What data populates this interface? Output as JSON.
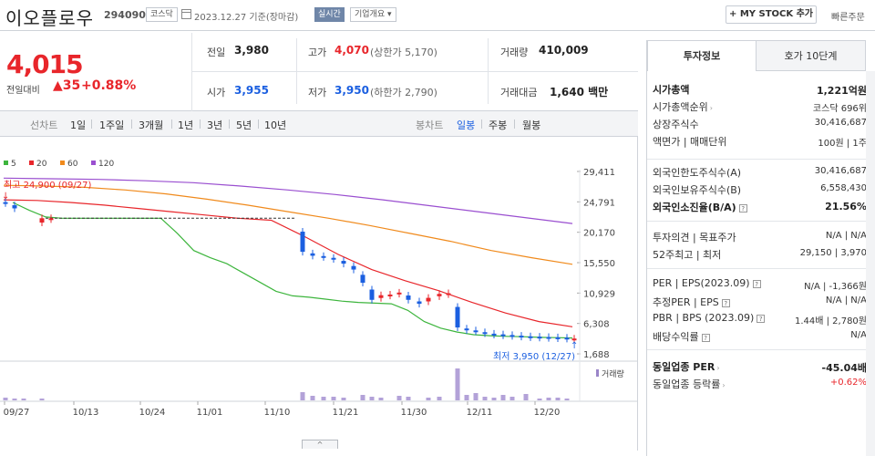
{
  "header": {
    "company_name": "이오플로우",
    "code": "294090",
    "market_tag": "코스닥",
    "date_text": "2023.12.27  기준(장마감)",
    "realtime_label": "실시간",
    "overview_label": "기업개요",
    "mystock_label": "MY STOCK 추가",
    "quick_order": "빠른주문"
  },
  "summary": {
    "price": "4,015",
    "change_label": "전일대비",
    "change_value": "35",
    "change_pct": "+0.88%",
    "prev_close_label": "전일",
    "prev_close": "3,980",
    "high_label": "고가",
    "high": "4,070",
    "upper_limit": "(상한가 5,170)",
    "volume_label": "거래량",
    "volume": "410,009",
    "open_label": "시가",
    "open": "3,955",
    "low_label": "저가",
    "low": "3,950",
    "lower_limit": "(하한가 2,790)",
    "amount_label": "거래대금",
    "amount": "1,640 백만"
  },
  "toolbar": {
    "line_chart": "선차트",
    "periods": [
      "1일",
      "1주일",
      "3개월",
      "1년",
      "3년",
      "5년",
      "10년"
    ],
    "candle_chart": "봉차트",
    "candle_types": [
      "일봉",
      "주봉",
      "월봉"
    ]
  },
  "chart": {
    "ma_legend": [
      {
        "label": "5",
        "color": "#3db53d"
      },
      {
        "label": "20",
        "color": "#e8262b"
      },
      {
        "label": "60",
        "color": "#f08a1c"
      },
      {
        "label": "120",
        "color": "#9a4fd0"
      }
    ],
    "y_ticks": [
      "29,411",
      "24,791",
      "20,170",
      "15,550",
      "10,929",
      "6,308",
      "1,688"
    ],
    "x_ticks": [
      "09/27",
      "10/13",
      "10/24",
      "11/01",
      "11/10",
      "11/21",
      "11/30",
      "12/11",
      "12/20"
    ],
    "high_annotation": "최고 24,900 (09/27)",
    "low_annotation": "최저 3,950 (12/27)",
    "volume_label": "거래량",
    "scroll_handle": "^"
  },
  "chart_data": {
    "type": "candlestick",
    "title": "",
    "ylim": [
      1688,
      29411
    ],
    "series": [
      {
        "name": "5",
        "color": "#3db53d"
      },
      {
        "name": "20",
        "color": "#e8262b"
      },
      {
        "name": "60",
        "color": "#f08a1c"
      },
      {
        "name": "120",
        "color": "#9a4fd0"
      }
    ],
    "high": {
      "value": 24900,
      "date": "09/27"
    },
    "low": {
      "value": 3950,
      "date": "12/27"
    },
    "candles_close": [
      24600,
      23800,
      22000,
      21200,
      22300,
      22300,
      22300,
      22300,
      22300,
      22300,
      17200,
      16600,
      16400,
      16100,
      15400,
      14500,
      12500,
      9900,
      10600,
      10700,
      11000,
      9900,
      9300,
      10200,
      10800,
      10900,
      5700,
      5300,
      5100,
      4800,
      4600,
      4500,
      4400,
      4300,
      4200,
      4150,
      4100,
      4050,
      4000,
      4015
    ],
    "ma5": [
      24700,
      23500,
      22500,
      22300,
      22300,
      22300,
      22300,
      22300,
      22300,
      22300,
      20000,
      17400,
      16300,
      15400,
      14000,
      12600,
      11200,
      10500,
      10300,
      10000,
      9700,
      9500,
      9400,
      9300,
      8300,
      6600,
      5600,
      5000,
      4600,
      4450,
      4350,
      4300,
      4200,
      4150,
      4100
    ],
    "ma20": [
      25100,
      25000,
      24700,
      24300,
      23800,
      23300,
      22800,
      22300,
      22000,
      19500,
      16800,
      14500,
      12800,
      11300,
      9500,
      7900,
      6600,
      5800
    ],
    "ma60": [
      27300,
      27200,
      27000,
      26600,
      26000,
      25200,
      24300,
      23300,
      22300,
      21200,
      20000,
      18800,
      17400,
      16300,
      15300
    ],
    "ma120": [
      28400,
      28300,
      28200,
      28000,
      27700,
      27200,
      26600,
      25900,
      25100,
      24200,
      23300,
      22400,
      21500
    ]
  },
  "right_panel": {
    "tabs": [
      "투자정보",
      "호가 10단계"
    ],
    "rows1": [
      {
        "label": "시가총액",
        "value": "1,221억원",
        "bold": true
      },
      {
        "label": "시가총액순위",
        "value": "코스닥 696위",
        "arrow": true
      },
      {
        "label": "상장주식수",
        "value": "30,416,687"
      },
      {
        "label": "액면가 | 매매단위",
        "value": "100원  |  1주"
      }
    ],
    "rows2": [
      {
        "label": "외국인한도주식수(A)",
        "value": "30,416,687"
      },
      {
        "label": "외국인보유주식수(B)",
        "value": "6,558,430"
      },
      {
        "label": "외국인소진율(B/A)",
        "value": "21.56%",
        "bold": true,
        "help": true
      }
    ],
    "rows3": [
      {
        "label": "투자의견  |  목표주가",
        "value": "N/A  |  N/A"
      },
      {
        "label": "52주최고  |  최저",
        "value": "29,150  |  3,970"
      }
    ],
    "rows4": [
      {
        "label": "PER  |  EPS(2023.09)",
        "value": "N/A  |  -1,366원",
        "help": true
      },
      {
        "label": "추정PER  |  EPS",
        "value": "N/A  |  N/A",
        "help": true
      },
      {
        "label": "PBR  |  BPS (2023.09)",
        "value": "1.44배  |  2,780원",
        "help": true
      },
      {
        "label": "배당수익률",
        "value": "N/A",
        "help": true
      }
    ],
    "rows5": [
      {
        "label": "동일업종 PER",
        "value": "-45.04배",
        "bold": true,
        "arrow": true
      },
      {
        "label": "동일업종 등락률",
        "value": "+0.62%",
        "red": true,
        "arrow": true
      }
    ]
  }
}
